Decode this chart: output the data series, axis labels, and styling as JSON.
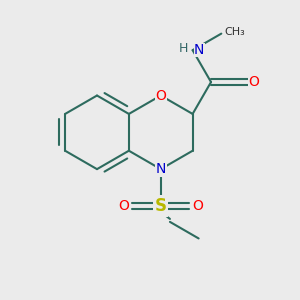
{
  "bg_color": "#ebebeb",
  "bond_color": "#2d6b5e",
  "bond_width": 1.5,
  "o_color": "#ff0000",
  "n_color": "#0000cc",
  "s_color": "#b8b800",
  "h_color": "#336666",
  "text_color": "#333333",
  "fig_size": [
    3.0,
    3.0
  ],
  "dpi": 100,
  "xlim": [
    0,
    10
  ],
  "ylim": [
    0,
    10
  ]
}
